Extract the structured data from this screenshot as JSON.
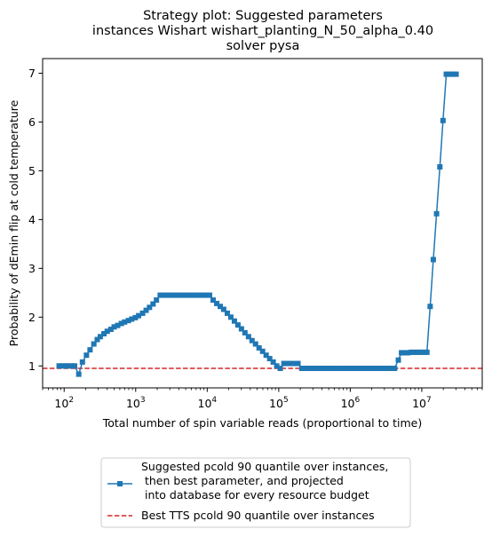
{
  "chart_data": {
    "type": "line",
    "title_lines": [
      "Strategy plot: Suggested parameters",
      "instances Wishart wishart_planting_N_50_alpha_0.40",
      "solver pysa"
    ],
    "xlabel": "Total number of spin variable reads (proportional to time)",
    "ylabel": "Probability of dEmin flip at cold temperature",
    "x_scale": "log",
    "xlim": [
      50,
      70000000
    ],
    "ylim": [
      0.55,
      7.3
    ],
    "x_ticks": [
      {
        "value": 100,
        "base": "10",
        "exp": "2"
      },
      {
        "value": 1000,
        "base": "10",
        "exp": "3"
      },
      {
        "value": 10000,
        "base": "10",
        "exp": "4"
      },
      {
        "value": 100000,
        "base": "10",
        "exp": "5"
      },
      {
        "value": 1000000,
        "base": "10",
        "exp": "6"
      },
      {
        "value": 10000000,
        "base": "10",
        "exp": "7"
      }
    ],
    "y_ticks": [
      "1",
      "2",
      "3",
      "4",
      "5",
      "6",
      "7"
    ],
    "grid": false,
    "legend_placement": "below plot",
    "series": [
      {
        "name": "Suggested pcold 90 quantile over instances,\n  then best parameter, and projected\n into database for every resource budget",
        "color": "#1f77b4",
        "marker": "square",
        "points": [
          [
            85,
            1.0
          ],
          [
            95,
            1.0
          ],
          [
            105,
            1.0
          ],
          [
            115,
            1.0
          ],
          [
            128,
            1.0
          ],
          [
            140,
            1.0
          ],
          [
            160,
            0.83
          ],
          [
            180,
            1.08
          ],
          [
            205,
            1.22
          ],
          [
            230,
            1.33
          ],
          [
            260,
            1.45
          ],
          [
            290,
            1.54
          ],
          [
            320,
            1.6
          ],
          [
            360,
            1.66
          ],
          [
            400,
            1.71
          ],
          [
            450,
            1.75
          ],
          [
            500,
            1.8
          ],
          [
            560,
            1.83
          ],
          [
            630,
            1.87
          ],
          [
            700,
            1.9
          ],
          [
            790,
            1.93
          ],
          [
            880,
            1.96
          ],
          [
            990,
            1.99
          ],
          [
            1100,
            2.03
          ],
          [
            1250,
            2.08
          ],
          [
            1400,
            2.14
          ],
          [
            1560,
            2.2
          ],
          [
            1750,
            2.27
          ],
          [
            1950,
            2.35
          ],
          [
            2200,
            2.45
          ],
          [
            2450,
            2.45
          ],
          [
            2750,
            2.45
          ],
          [
            3100,
            2.45
          ],
          [
            3450,
            2.45
          ],
          [
            3900,
            2.45
          ],
          [
            4350,
            2.45
          ],
          [
            4900,
            2.45
          ],
          [
            5500,
            2.45
          ],
          [
            6100,
            2.45
          ],
          [
            6900,
            2.45
          ],
          [
            7700,
            2.45
          ],
          [
            8600,
            2.45
          ],
          [
            9700,
            2.45
          ],
          [
            10800,
            2.45
          ],
          [
            12100,
            2.35
          ],
          [
            13600,
            2.28
          ],
          [
            15200,
            2.22
          ],
          [
            17000,
            2.16
          ],
          [
            19100,
            2.08
          ],
          [
            21400,
            2.0
          ],
          [
            24000,
            1.92
          ],
          [
            26900,
            1.84
          ],
          [
            30100,
            1.76
          ],
          [
            33700,
            1.68
          ],
          [
            37800,
            1.6
          ],
          [
            42300,
            1.52
          ],
          [
            47400,
            1.45
          ],
          [
            53100,
            1.37
          ],
          [
            59500,
            1.3
          ],
          [
            66700,
            1.22
          ],
          [
            74700,
            1.15
          ],
          [
            83700,
            1.08
          ],
          [
            93800,
            1.0
          ],
          [
            105000,
            0.95
          ],
          [
            118000,
            1.05
          ],
          [
            132000,
            1.05
          ],
          [
            148000,
            1.05
          ],
          [
            166000,
            1.05
          ],
          [
            186000,
            1.05
          ],
          [
            210000,
            0.95
          ],
          [
            240000,
            0.95
          ],
          [
            270000,
            0.95
          ],
          [
            305000,
            0.95
          ],
          [
            345000,
            0.95
          ],
          [
            390000,
            0.95
          ],
          [
            440000,
            0.95
          ],
          [
            500000,
            0.95
          ],
          [
            560000,
            0.95
          ],
          [
            630000,
            0.95
          ],
          [
            710000,
            0.95
          ],
          [
            800000,
            0.95
          ],
          [
            900000,
            0.95
          ],
          [
            1000000,
            0.95
          ],
          [
            1130000,
            0.95
          ],
          [
            1270000,
            0.95
          ],
          [
            1430000,
            0.95
          ],
          [
            1610000,
            0.95
          ],
          [
            1810000,
            0.95
          ],
          [
            2040000,
            0.95
          ],
          [
            2300000,
            0.95
          ],
          [
            2590000,
            0.95
          ],
          [
            2920000,
            0.95
          ],
          [
            3290000,
            0.95
          ],
          [
            3700000,
            0.95
          ],
          [
            4170000,
            0.95
          ],
          [
            4700000,
            1.12
          ],
          [
            5200000,
            1.27
          ],
          [
            5800000,
            1.27
          ],
          [
            6400000,
            1.27
          ],
          [
            7100000,
            1.28
          ],
          [
            7900000,
            1.28
          ],
          [
            8700000,
            1.28
          ],
          [
            9700000,
            1.28
          ],
          [
            10700000,
            1.28
          ],
          [
            11800000,
            1.28
          ],
          [
            13100000,
            2.22
          ],
          [
            14500000,
            3.18
          ],
          [
            16100000,
            4.12
          ],
          [
            17900000,
            5.08
          ],
          [
            19800000,
            6.03
          ],
          [
            22000000,
            6.98
          ],
          [
            24500000,
            6.98
          ],
          [
            27200000,
            6.98
          ],
          [
            30200000,
            6.98
          ]
        ]
      },
      {
        "name": "Best TTS pcold 90 quantile over instances",
        "color": "#d62728",
        "style": "dashed",
        "y_constant": 0.95
      }
    ]
  }
}
